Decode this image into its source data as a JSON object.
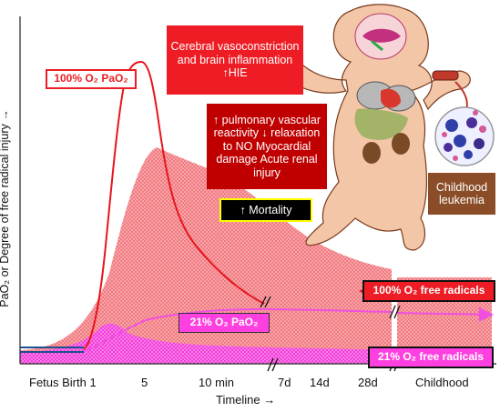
{
  "colors": {
    "red_curve": "#e8141c",
    "pink_curve": "#f04fe0",
    "red_fill": "#f07a80",
    "magenta_fill": "#f23fda",
    "blue_lines": "#1f4f8f",
    "box_red": "#ee1c24",
    "box_darkred": "#c00000",
    "box_brown": "#8b4d27",
    "box_pink": "#ff40e0",
    "yellow_border": "#ffff00"
  },
  "y_axis_label": "PaO₂ or Degree of free radical injury →",
  "x_axis_label": "Timeline →",
  "x_ticks": [
    "Fetus Birth 1",
    "5",
    "10 min",
    "7d",
    "14d",
    "28d",
    "Childhood"
  ],
  "labels": {
    "hundred_pao2": "100% O₂ PaO₂",
    "twentyone_pao2": "21% O₂ PaO₂",
    "hundred_radicals": "100% O₂ free radicals",
    "twentyone_radicals": "21% O₂ free radicals",
    "cerebral": "Cerebral vasoconstriction and brain inflammation ↑HIE",
    "pulmonary": "↑ pulmonary vascular reactivity ↓ relaxation to NO Myocardial damage Acute renal injury",
    "mortality": "↑ Mortality",
    "leukemia": "Childhood leukemia"
  },
  "icons": [
    "infant-organs-icon",
    "blood-cells-icon"
  ]
}
